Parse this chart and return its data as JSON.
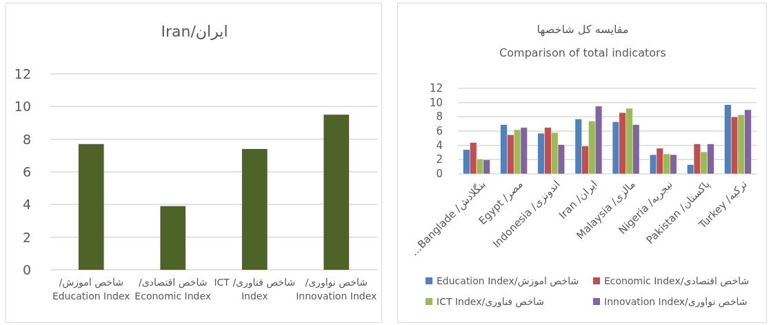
{
  "chart_data": [
    {
      "type": "bar",
      "title": "Iran/ایران",
      "categories": [
        "شاخص اموزش/ Education Index",
        "شاخص اقتصادی/ Economic Index",
        "شاخص فناوری/ ICT Index",
        "شاخص نواوری/ Innovation Index"
      ],
      "series": [
        {
          "color": "#4f6228",
          "values": [
            7.7,
            3.9,
            7.4,
            9.5
          ]
        }
      ],
      "ylim": [
        0,
        12
      ],
      "yticks": [
        0,
        2,
        4,
        6,
        8,
        10,
        12
      ],
      "grid": "y"
    },
    {
      "type": "bar",
      "title": "مقایسه کل شاخصها",
      "subtitle": "Comparison of total indicators",
      "categories": [
        "بنگلادش/ Banglade…",
        "مصر/ Egypt",
        "اندونزی/ Indonesia",
        "ایران/ Iran",
        "مالزی/ Malaysia",
        "نیجریه/ Nigeria",
        "پاکستان/ Pakistan",
        "ترکیه/ Turkey"
      ],
      "series": [
        {
          "name": "Education Index/شاخص اموزش",
          "color": "#4f81bd",
          "values": [
            3.4,
            6.9,
            5.7,
            7.7,
            7.3,
            2.7,
            1.3,
            9.7
          ]
        },
        {
          "name": "Economic Index/شاخص اقتصادی",
          "color": "#c0504d",
          "values": [
            4.4,
            5.5,
            6.5,
            3.9,
            8.6,
            3.6,
            4.2,
            8.0
          ]
        },
        {
          "name": "ICT Index/شاخص فناوری",
          "color": "#9bbb59",
          "values": [
            2.1,
            6.2,
            5.8,
            7.4,
            9.2,
            2.8,
            3.1,
            8.3
          ]
        },
        {
          "name": "Innovation Index/شاخص نواوری",
          "color": "#8064a2",
          "values": [
            2.0,
            6.5,
            4.1,
            9.5,
            6.9,
            2.7,
            4.2,
            9.0
          ]
        }
      ],
      "ylim": [
        0,
        12
      ],
      "yticks": [
        0,
        2,
        4,
        6,
        8,
        10,
        12
      ],
      "grid": "y",
      "legend": "bottom"
    }
  ]
}
